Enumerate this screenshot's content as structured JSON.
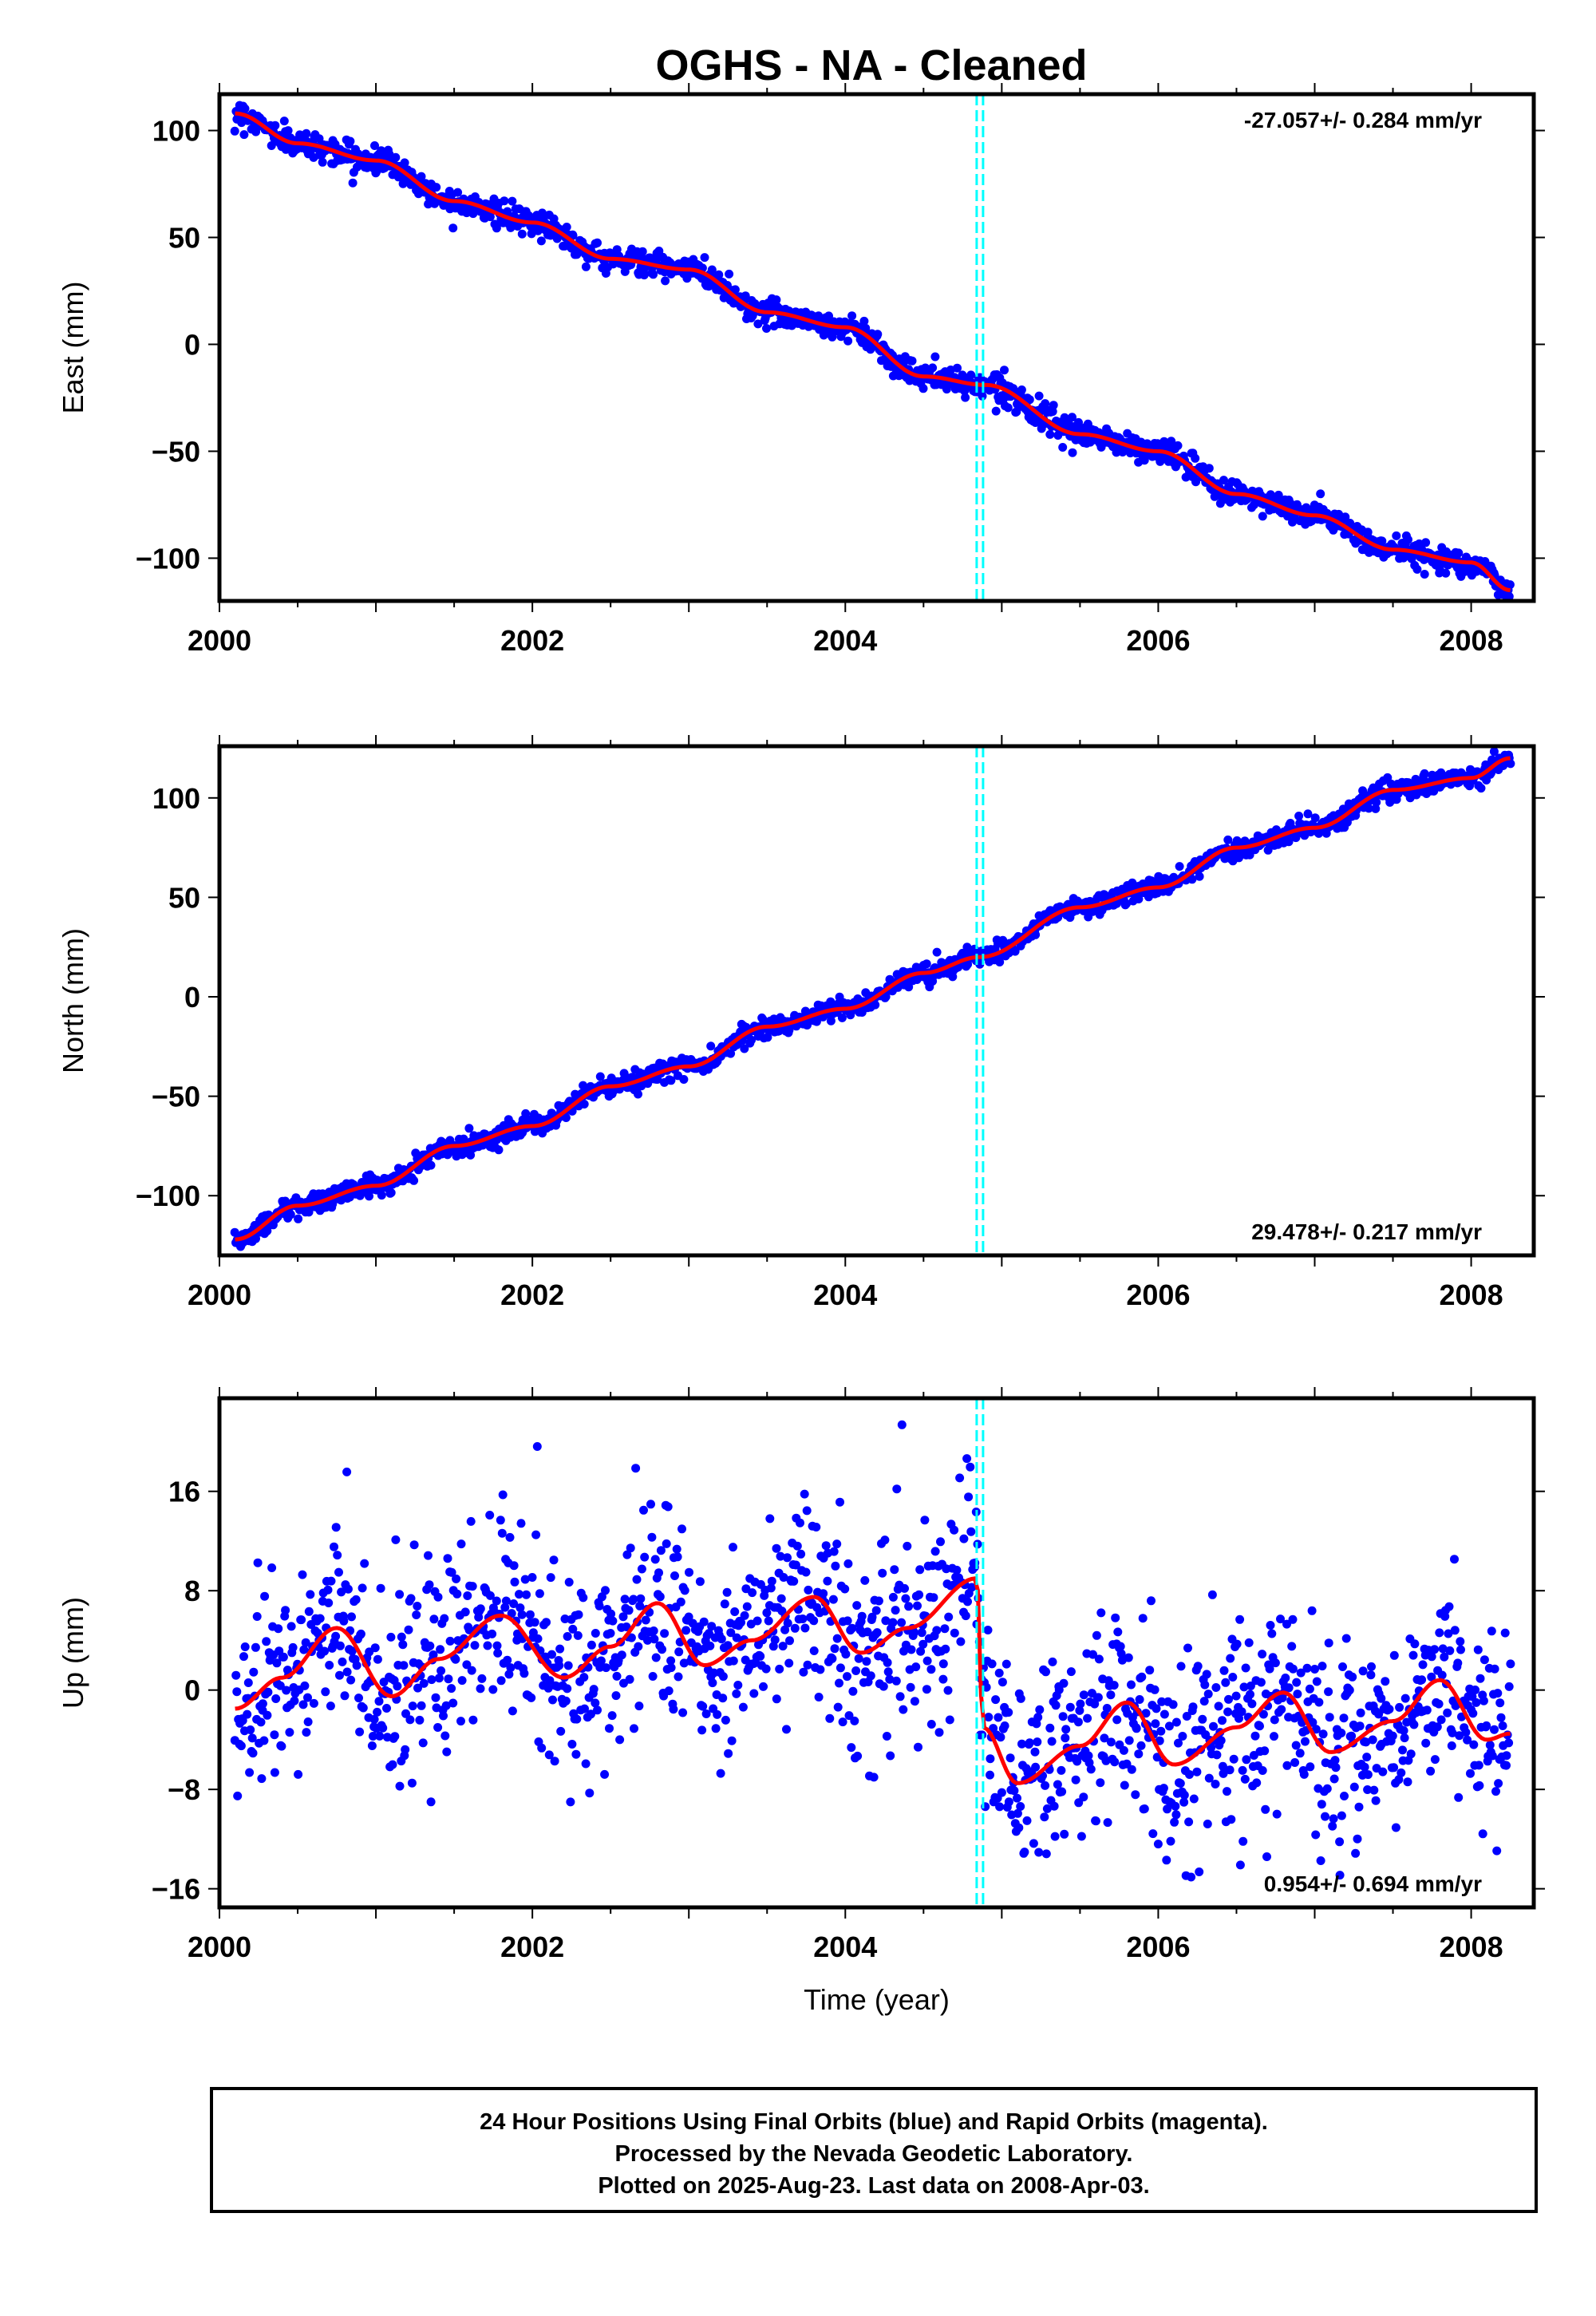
{
  "title": "OGHS  - NA - Cleaned",
  "colors": {
    "points": "#0000ff",
    "fit": "#ff0000",
    "offset_marker": "#00ffff",
    "frame": "#000000"
  },
  "chart_data": [
    {
      "type": "scatter",
      "name": "east",
      "ylabel": "East (mm)",
      "xlim": [
        2000.0,
        2008.4
      ],
      "ylim": [
        -120,
        117
      ],
      "x_ticks": [
        2000,
        2002,
        2004,
        2006,
        2008
      ],
      "y_ticks": [
        100,
        50,
        0,
        -50,
        -100
      ],
      "rate_label": "-27.057+/- 0.284 mm/yr",
      "rate_position": "top-right",
      "offset_marker_x": 2004.86,
      "trend": [
        [
          2000.1,
          108
        ],
        [
          2000.5,
          94
        ],
        [
          2001.0,
          86
        ],
        [
          2001.5,
          67
        ],
        [
          2002.0,
          57
        ],
        [
          2002.5,
          40
        ],
        [
          2003.0,
          35
        ],
        [
          2003.5,
          15
        ],
        [
          2004.0,
          8
        ],
        [
          2004.5,
          -15
        ],
        [
          2004.9,
          -19
        ],
        [
          2005.5,
          -42
        ],
        [
          2006.0,
          -50
        ],
        [
          2006.5,
          -70
        ],
        [
          2007.0,
          -80
        ],
        [
          2007.5,
          -96
        ],
        [
          2008.0,
          -102
        ],
        [
          2008.25,
          -115
        ]
      ],
      "scatter": {
        "x_start": 2000.1,
        "x_end": 2008.25,
        "count": 1400,
        "spread": 3
      },
      "series": [
        {
          "name": "24 Hour Positions (blue)",
          "kind": "points"
        },
        {
          "name": "fit (red)",
          "kind": "line"
        }
      ]
    },
    {
      "type": "scatter",
      "name": "north",
      "ylabel": "North (mm)",
      "xlim": [
        2000.0,
        2008.4
      ],
      "ylim": [
        -130,
        126
      ],
      "x_ticks": [
        2000,
        2002,
        2004,
        2006,
        2008
      ],
      "y_ticks": [
        100,
        50,
        0,
        -50,
        -100
      ],
      "rate_label": "29.478+/- 0.217 mm/yr",
      "rate_position": "bottom-right",
      "offset_marker_x": 2004.86,
      "trend": [
        [
          2000.1,
          -122
        ],
        [
          2000.5,
          -105
        ],
        [
          2001.0,
          -95
        ],
        [
          2001.5,
          -75
        ],
        [
          2002.0,
          -65
        ],
        [
          2002.5,
          -45
        ],
        [
          2003.0,
          -35
        ],
        [
          2003.5,
          -15
        ],
        [
          2004.0,
          -6
        ],
        [
          2004.5,
          12
        ],
        [
          2004.86,
          20
        ],
        [
          2005.5,
          45
        ],
        [
          2006.0,
          55
        ],
        [
          2006.5,
          75
        ],
        [
          2007.0,
          85
        ],
        [
          2007.5,
          104
        ],
        [
          2008.0,
          110
        ],
        [
          2008.25,
          120
        ]
      ],
      "scatter": {
        "x_start": 2000.1,
        "x_end": 2008.25,
        "count": 1400,
        "spread": 2.5
      },
      "series": [
        {
          "name": "24 Hour Positions (blue)",
          "kind": "points"
        },
        {
          "name": "fit (red)",
          "kind": "line"
        }
      ]
    },
    {
      "type": "scatter",
      "name": "up",
      "ylabel": "Up (mm)",
      "xlabel": "Time (year)",
      "xlim": [
        2000.0,
        2008.4
      ],
      "ylim": [
        -17.5,
        23.5
      ],
      "x_ticks": [
        2000,
        2002,
        2004,
        2006,
        2008
      ],
      "y_ticks": [
        16,
        8,
        0,
        -8,
        -16
      ],
      "rate_label": "0.954+/- 0.694 mm/yr",
      "rate_position": "bottom-right",
      "offset_marker_x": 2004.86,
      "trend": [
        [
          2000.1,
          -1.5
        ],
        [
          2000.4,
          1
        ],
        [
          2000.75,
          5
        ],
        [
          2001.1,
          -0.5
        ],
        [
          2001.4,
          2.5
        ],
        [
          2001.8,
          6
        ],
        [
          2002.2,
          1
        ],
        [
          2002.5,
          3.5
        ],
        [
          2002.8,
          7
        ],
        [
          2003.1,
          2
        ],
        [
          2003.4,
          4
        ],
        [
          2003.8,
          7.5
        ],
        [
          2004.1,
          3
        ],
        [
          2004.4,
          5
        ],
        [
          2004.84,
          9
        ],
        [
          2004.88,
          -3
        ],
        [
          2005.1,
          -7.5
        ],
        [
          2005.5,
          -4.5
        ],
        [
          2005.8,
          -1
        ],
        [
          2006.1,
          -6
        ],
        [
          2006.5,
          -3
        ],
        [
          2006.8,
          -0.2
        ],
        [
          2007.1,
          -5
        ],
        [
          2007.5,
          -2.5
        ],
        [
          2007.8,
          0.8
        ],
        [
          2008.1,
          -4
        ],
        [
          2008.25,
          -3.5
        ]
      ],
      "scatter": {
        "x_start": 2000.1,
        "x_end": 2008.25,
        "count": 1500,
        "spread": 4
      },
      "series": [
        {
          "name": "24 Hour Positions (blue)",
          "kind": "points"
        },
        {
          "name": "fit (red)",
          "kind": "line"
        }
      ]
    }
  ],
  "footer": {
    "line1": "24 Hour Positions Using Final Orbits (blue) and Rapid Orbits (magenta).",
    "line2": "Processed by the Nevada Geodetic Laboratory.",
    "line3": "Plotted on 2025-Aug-23. Last data on 2008-Apr-03."
  }
}
